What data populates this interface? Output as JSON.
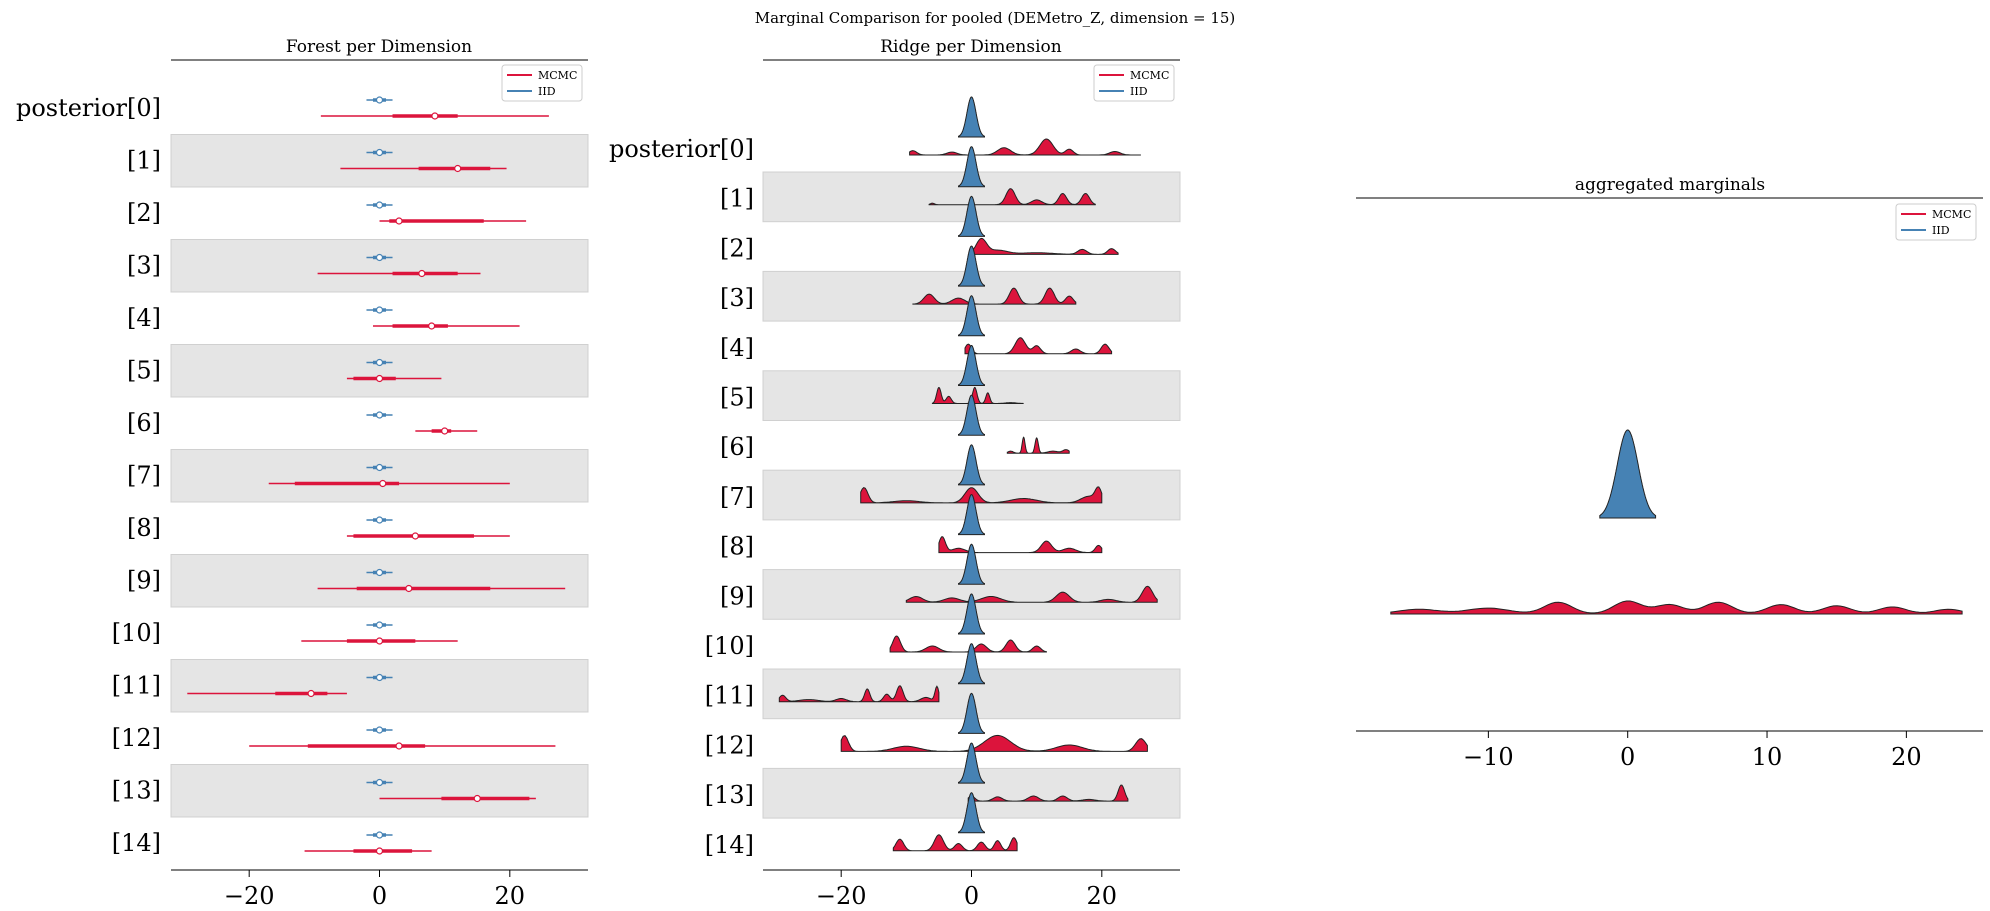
{
  "suptitle": "Marginal Comparison for pooled (DEMetro_Z, dimension = 15)",
  "legend": [
    "MCMC",
    "IID"
  ],
  "colors": {
    "MCMC": "#dc143c",
    "IID": "#4682b4"
  },
  "chart_data": [
    {
      "type": "forest",
      "title": "Forest per Dimension",
      "xlim": [
        -32,
        32
      ],
      "xticks": [
        "−20",
        "0",
        "20"
      ],
      "xtick_values": [
        -20,
        0,
        20
      ],
      "labels": [
        "posterior[0]",
        "[1]",
        "[2]",
        "[3]",
        "[4]",
        "[5]",
        "[6]",
        "[7]",
        "[8]",
        "[9]",
        "[10]",
        "[11]",
        "[12]",
        "[13]",
        "[14]"
      ],
      "series": [
        {
          "name": "MCMC",
          "rows": [
            {
              "lo": -9,
              "q1": 2,
              "med": 8.5,
              "q3": 12,
              "hi": 26
            },
            {
              "lo": -6,
              "q1": 6,
              "med": 12,
              "q3": 17,
              "hi": 19.5
            },
            {
              "lo": 0,
              "q1": 1.5,
              "med": 3,
              "q3": 16,
              "hi": 22.5
            },
            {
              "lo": -9.5,
              "q1": 2,
              "med": 6.5,
              "q3": 12,
              "hi": 15.5
            },
            {
              "lo": -1,
              "q1": 2,
              "med": 8,
              "q3": 10.5,
              "hi": 21.5
            },
            {
              "lo": -5,
              "q1": -4,
              "med": 0,
              "q3": 2.5,
              "hi": 9.5
            },
            {
              "lo": 5.5,
              "q1": 8,
              "med": 10,
              "q3": 11,
              "hi": 15
            },
            {
              "lo": -17,
              "q1": -13,
              "med": 0.5,
              "q3": 3,
              "hi": 20
            },
            {
              "lo": -5,
              "q1": -4,
              "med": 5.5,
              "q3": 14.5,
              "hi": 20
            },
            {
              "lo": -9.5,
              "q1": -3.5,
              "med": 4.5,
              "q3": 17,
              "hi": 28.5
            },
            {
              "lo": -12,
              "q1": -5,
              "med": 0,
              "q3": 5.5,
              "hi": 12
            },
            {
              "lo": -29.5,
              "q1": -16,
              "med": -10.5,
              "q3": -8,
              "hi": -5
            },
            {
              "lo": -20,
              "q1": -11,
              "med": 3,
              "q3": 7,
              "hi": 27
            },
            {
              "lo": 0,
              "q1": 9.5,
              "med": 15,
              "q3": 23,
              "hi": 24
            },
            {
              "lo": -11.5,
              "q1": -4,
              "med": 0,
              "q3": 5,
              "hi": 8
            }
          ]
        },
        {
          "name": "IID",
          "rows": [
            {
              "lo": -2,
              "q1": -1,
              "med": 0,
              "q3": 1,
              "hi": 2
            }
          ]
        }
      ]
    },
    {
      "type": "ridge",
      "title": "Ridge per Dimension",
      "xlim": [
        -32,
        32
      ],
      "xticks": [
        "−20",
        "0",
        "20"
      ],
      "xtick_values": [
        -20,
        0,
        20
      ],
      "labels": [
        "posterior[0]",
        "[1]",
        "[2]",
        "[3]",
        "[4]",
        "[5]",
        "[6]",
        "[7]",
        "[8]",
        "[9]",
        "[10]",
        "[11]",
        "[12]",
        "[13]",
        "[14]"
      ],
      "series": [
        {
          "name": "MCMC",
          "rows": [
            {
              "range": [
                -9.5,
                26
              ],
              "bumps": [
                [
                  -9,
                  0.6,
                  0.15
                ],
                [
                  -3,
                  0.8,
                  0.1
                ],
                [
                  5,
                  1,
                  0.25
                ],
                [
                  11.5,
                  1,
                  0.55
                ],
                [
                  15,
                  0.6,
                  0.2
                ],
                [
                  22,
                  0.8,
                  0.12
                ]
              ]
            },
            {
              "range": [
                -6.5,
                19
              ],
              "bumps": [
                [
                  -6,
                  0.3,
                  0.05
                ],
                [
                  6,
                  0.7,
                  0.5
                ],
                [
                  10,
                  0.8,
                  0.15
                ],
                [
                  14,
                  0.6,
                  0.35
                ],
                [
                  17.5,
                  0.6,
                  0.35
                ]
              ]
            },
            {
              "range": [
                0,
                22.5
              ],
              "bumps": [
                [
                  1.5,
                  0.8,
                  0.9
                ],
                [
                  4,
                  1.5,
                  0.25
                ],
                [
                  10,
                  2.5,
                  0.1
                ],
                [
                  17,
                  0.7,
                  0.3
                ],
                [
                  21.5,
                  0.6,
                  0.35
                ]
              ]
            },
            {
              "range": [
                -9,
                16
              ],
              "bumps": [
                [
                  -6.5,
                  0.8,
                  0.25
                ],
                [
                  -2,
                  1,
                  0.15
                ],
                [
                  6.5,
                  0.7,
                  0.4
                ],
                [
                  12,
                  0.7,
                  0.4
                ],
                [
                  15,
                  0.6,
                  0.2
                ]
              ]
            },
            {
              "range": [
                -1,
                21.5
              ],
              "bumps": [
                [
                  -0.5,
                  0.5,
                  0.3
                ],
                [
                  7.5,
                  0.8,
                  0.5
                ],
                [
                  10,
                  0.6,
                  0.25
                ],
                [
                  16,
                  0.7,
                  0.15
                ],
                [
                  20.5,
                  0.6,
                  0.3
                ]
              ]
            },
            {
              "range": [
                -6,
                8
              ],
              "bumps": [
                [
                  -5,
                  0.35,
                  0.9
                ],
                [
                  -3.5,
                  0.4,
                  0.4
                ],
                [
                  0.5,
                  0.35,
                  0.9
                ],
                [
                  2.5,
                  0.3,
                  0.6
                ],
                [
                  6,
                  0.8,
                  0.05
                ]
              ]
            },
            {
              "range": [
                5.5,
                15
              ],
              "bumps": [
                [
                  6,
                  0.4,
                  0.15
                ],
                [
                  8,
                  0.22,
                  1.15
                ],
                [
                  10,
                  0.25,
                  1.1
                ],
                [
                  12.5,
                  0.8,
                  0.15
                ],
                [
                  14.5,
                  0.5,
                  0.25
                ]
              ]
            },
            {
              "range": [
                -17,
                20
              ],
              "bumps": [
                [
                  -16.5,
                  0.6,
                  0.35
                ],
                [
                  -10,
                  2,
                  0.05
                ],
                [
                  0,
                  1,
                  0.35
                ],
                [
                  8,
                  2,
                  0.1
                ],
                [
                  18,
                  1.2,
                  0.15
                ],
                [
                  19.5,
                  0.5,
                  0.3
                ]
              ]
            },
            {
              "range": [
                -5,
                20
              ],
              "bumps": [
                [
                  -4.5,
                  0.5,
                  0.55
                ],
                [
                  -2,
                  1,
                  0.15
                ],
                [
                  11.5,
                  0.8,
                  0.4
                ],
                [
                  15,
                  1,
                  0.15
                ],
                [
                  19.5,
                  0.5,
                  0.25
                ]
              ]
            },
            {
              "range": [
                -10,
                28.5
              ],
              "bumps": [
                [
                  -8.5,
                  1,
                  0.2
                ],
                [
                  -3,
                  1.2,
                  0.15
                ],
                [
                  3,
                  1.5,
                  0.2
                ],
                [
                  14,
                  1,
                  0.35
                ],
                [
                  21,
                  1.2,
                  0.1
                ],
                [
                  27,
                  0.8,
                  0.55
                ]
              ]
            },
            {
              "range": [
                -12.5,
                11.5
              ],
              "bumps": [
                [
                  -11.5,
                  0.6,
                  0.4
                ],
                [
                  -6,
                  1,
                  0.15
                ],
                [
                  1.5,
                  0.8,
                  0.2
                ],
                [
                  6,
                  0.7,
                  0.3
                ],
                [
                  10,
                  0.6,
                  0.15
                ]
              ]
            },
            {
              "range": [
                -29.5,
                -5
              ],
              "bumps": [
                [
                  -29,
                  0.5,
                  0.3
                ],
                [
                  -25,
                  1.5,
                  0.1
                ],
                [
                  -20,
                  0.8,
                  0.15
                ],
                [
                  -16,
                  0.4,
                  0.6
                ],
                [
                  -13,
                  0.5,
                  0.35
                ],
                [
                  -11,
                  0.5,
                  0.75
                ],
                [
                  -7,
                  0.8,
                  0.2
                ],
                [
                  -5.3,
                  0.3,
                  0.7
                ]
              ]
            },
            {
              "range": [
                -20,
                27
              ],
              "bumps": [
                [
                  -19.5,
                  0.6,
                  0.25
                ],
                [
                  -10,
                  2,
                  0.08
                ],
                [
                  4,
                  2,
                  0.25
                ],
                [
                  15,
                  2,
                  0.1
                ],
                [
                  26,
                  0.8,
                  0.2
                ]
              ]
            },
            {
              "range": [
                -0.5,
                24
              ],
              "bumps": [
                [
                  0,
                  0.5,
                  0.3
                ],
                [
                  4,
                  0.7,
                  0.25
                ],
                [
                  9.5,
                  0.8,
                  0.3
                ],
                [
                  14,
                  0.7,
                  0.3
                ],
                [
                  18,
                  1,
                  0.1
                ],
                [
                  23,
                  0.5,
                  0.95
                ]
              ]
            },
            {
              "range": [
                -12,
                7
              ],
              "bumps": [
                [
                  -11,
                  0.6,
                  0.4
                ],
                [
                  -5,
                  0.7,
                  0.55
                ],
                [
                  -2,
                  0.6,
                  0.25
                ],
                [
                  1.5,
                  0.6,
                  0.3
                ],
                [
                  4,
                  0.5,
                  0.35
                ],
                [
                  6.5,
                  0.5,
                  0.45
                ]
              ]
            }
          ]
        },
        {
          "name": "IID",
          "rows": [
            {
              "range": [
                -2,
                2
              ],
              "bumps": [
                [
                  0,
                  0.7,
                  1
                ]
              ]
            }
          ]
        }
      ]
    },
    {
      "type": "ridge",
      "title": "aggregated marginals",
      "xlim": [
        -19.5,
        25.5
      ],
      "xticks": [
        "−10",
        "0",
        "10",
        "20"
      ],
      "xtick_values": [
        -10,
        0,
        10,
        20
      ],
      "series": [
        {
          "name": "MCMC",
          "range": [
            -17,
            24
          ],
          "bumps": [
            [
              -15,
              1.5,
              0.2
            ],
            [
              -10,
              1.5,
              0.25
            ],
            [
              -5,
              1,
              0.5
            ],
            [
              0,
              1,
              0.55
            ],
            [
              3,
              1,
              0.4
            ],
            [
              6.5,
              1,
              0.5
            ],
            [
              11,
              1,
              0.4
            ],
            [
              15,
              1,
              0.35
            ],
            [
              19,
              1,
              0.3
            ],
            [
              23,
              1,
              0.2
            ]
          ]
        },
        {
          "name": "IID",
          "range": [
            -2,
            2
          ],
          "bumps": [
            [
              0,
              0.75,
              1
            ]
          ]
        }
      ]
    }
  ]
}
